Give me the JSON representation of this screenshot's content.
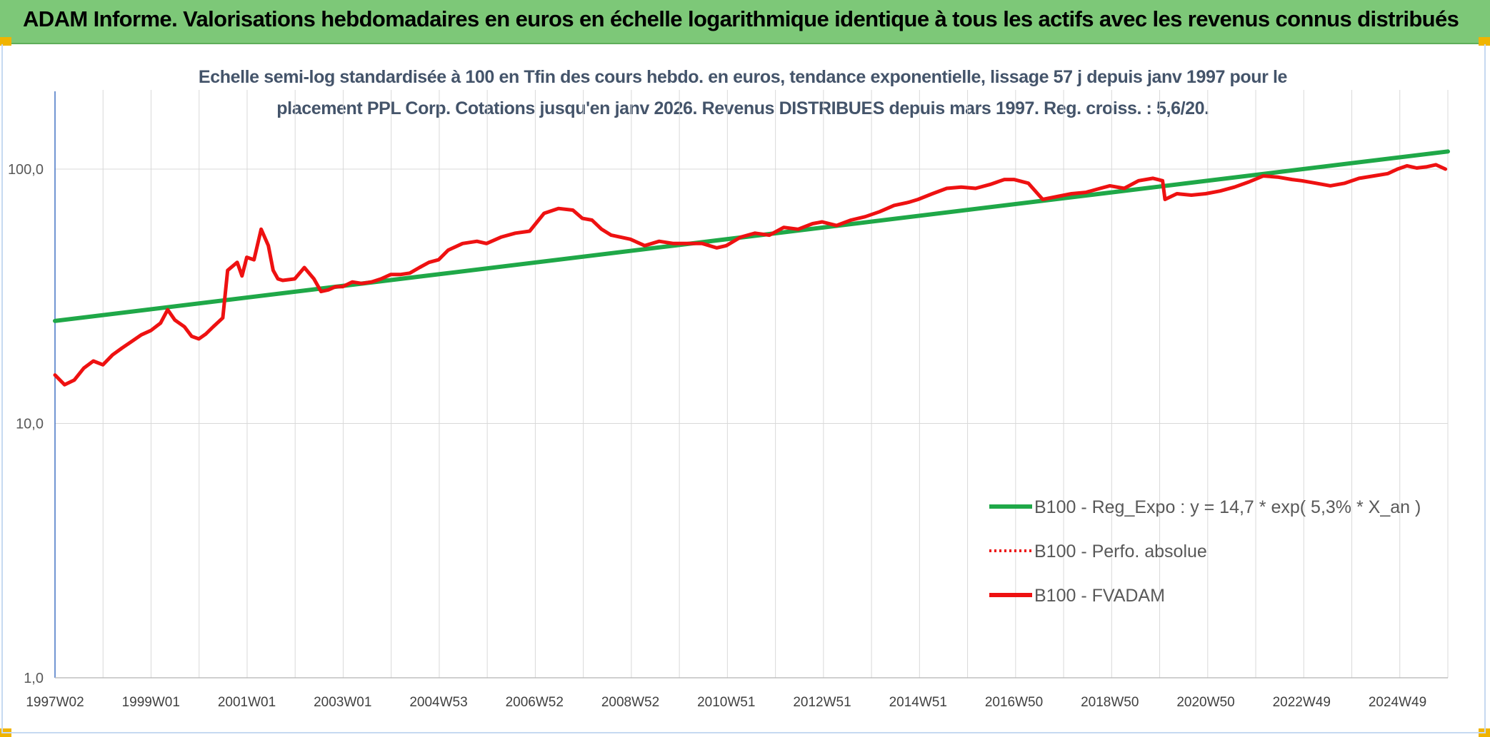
{
  "header": {
    "title": "ADAM Informe. Valorisations hebdomadaires en euros en échelle logarithmique identique à tous les actifs avec les revenus connus distribués"
  },
  "colors": {
    "banner": "#7dc878",
    "accent_corner": "#f0b400",
    "trend_line": "#1fa848",
    "price_line": "#ee1111",
    "subtitle": "#44546a"
  },
  "chart_data": {
    "type": "line",
    "title_line1": "Echelle semi-log standardisée à 100 en Tfin des cours hebdo. en euros, tendance exponentielle, lissage 57 j depuis janv 1997 pour le",
    "title_line2": "placement PPL Corp. Cotations jusqu'en janv 2026. Revenus DISTRIBUES depuis mars 1997. Reg. croiss. : 5,6/20.",
    "y_scale": "log",
    "ylim": [
      1,
      200
    ],
    "xlim": [
      1997.0,
      2026.05
    ],
    "y_ticks": [
      {
        "value": 1,
        "label": "1,0"
      },
      {
        "value": 10,
        "label": "10,0"
      },
      {
        "value": 100,
        "label": "100,0"
      }
    ],
    "x_ticks": [
      {
        "value": 1997.0,
        "label": "1997W02"
      },
      {
        "value": 1999.0,
        "label": "1999W01"
      },
      {
        "value": 2001.0,
        "label": "2001W01"
      },
      {
        "value": 2003.0,
        "label": "2003W01"
      },
      {
        "value": 2005.0,
        "label": "2004W53"
      },
      {
        "value": 2007.0,
        "label": "2006W52"
      },
      {
        "value": 2009.0,
        "label": "2008W52"
      },
      {
        "value": 2011.0,
        "label": "2010W51"
      },
      {
        "value": 2013.0,
        "label": "2012W51"
      },
      {
        "value": 2015.0,
        "label": "2014W51"
      },
      {
        "value": 2017.0,
        "label": "2016W50"
      },
      {
        "value": 2019.0,
        "label": "2018W50"
      },
      {
        "value": 2021.0,
        "label": "2020W50"
      },
      {
        "value": 2023.0,
        "label": "2022W49"
      },
      {
        "value": 2025.0,
        "label": "2024W49"
      }
    ],
    "grid": true,
    "legend_position": "bottom-right",
    "series": [
      {
        "name": "B100 - Reg_Expo : y = 14,7 * exp( 5,3% *  X_an )",
        "style": "solid",
        "color": "#1fa848",
        "x": [
          1997.0,
          2026.05
        ],
        "y": [
          25.3,
          117.3
        ]
      },
      {
        "name": "B100 - Perfo. absolue",
        "style": "dotted",
        "color": "#ee1111",
        "x": [],
        "y": []
      },
      {
        "name": "B100 - FVADAM",
        "style": "solid",
        "color": "#ee1111",
        "x": [
          1997.0,
          1997.2,
          1997.4,
          1997.6,
          1997.8,
          1998.0,
          1998.2,
          1998.4,
          1998.6,
          1998.8,
          1999.0,
          1999.2,
          1999.35,
          1999.5,
          1999.7,
          1999.85,
          2000.0,
          2000.15,
          2000.3,
          2000.5,
          2000.6,
          2000.8,
          2000.9,
          2001.0,
          2001.15,
          2001.3,
          2001.45,
          2001.55,
          2001.65,
          2001.75,
          2002.0,
          2002.2,
          2002.4,
          2002.55,
          2002.7,
          2002.85,
          2003.0,
          2003.2,
          2003.4,
          2003.6,
          2003.8,
          2004.0,
          2004.2,
          2004.4,
          2004.6,
          2004.8,
          2005.0,
          2005.2,
          2005.5,
          2005.8,
          2006.0,
          2006.3,
          2006.6,
          2006.9,
          2007.2,
          2007.5,
          2007.8,
          2008.0,
          2008.2,
          2008.4,
          2008.6,
          2008.8,
          2009.0,
          2009.3,
          2009.6,
          2009.9,
          2010.2,
          2010.5,
          2010.8,
          2011.0,
          2011.3,
          2011.6,
          2011.9,
          2012.2,
          2012.5,
          2012.8,
          2013.0,
          2013.3,
          2013.6,
          2013.9,
          2014.2,
          2014.5,
          2014.8,
          2015.0,
          2015.3,
          2015.6,
          2015.9,
          2016.2,
          2016.5,
          2016.8,
          2017.0,
          2017.3,
          2017.6,
          2017.9,
          2018.2,
          2018.5,
          2018.8,
          2019.0,
          2019.3,
          2019.6,
          2019.9,
          2020.1,
          2020.15,
          2020.4,
          2020.7,
          2021.0,
          2021.3,
          2021.6,
          2021.9,
          2022.2,
          2022.5,
          2022.8,
          2023.0,
          2023.3,
          2023.6,
          2023.9,
          2024.2,
          2024.5,
          2024.8,
          2025.0,
          2025.2,
          2025.4,
          2025.6,
          2025.8,
          2026.0
        ],
        "y": [
          15.5,
          14.2,
          14.8,
          16.5,
          17.6,
          17.0,
          18.6,
          19.8,
          21.0,
          22.3,
          23.2,
          24.8,
          28.0,
          25.5,
          24.0,
          22.0,
          21.5,
          22.5,
          24.0,
          26.0,
          40.0,
          43.0,
          38.0,
          45.0,
          44.0,
          58.0,
          50.0,
          40.0,
          37.0,
          36.5,
          37.0,
          41.0,
          37.0,
          33.0,
          33.5,
          34.5,
          34.5,
          36.0,
          35.5,
          36.0,
          37.0,
          38.5,
          38.5,
          39.0,
          41.0,
          43.0,
          44.0,
          48.0,
          51.0,
          52.0,
          51.0,
          54.0,
          56.0,
          57.0,
          67.0,
          70.0,
          69.0,
          64.0,
          63.0,
          58.0,
          55.0,
          54.0,
          53.0,
          50.0,
          52.0,
          51.0,
          51.0,
          51.0,
          49.0,
          50.0,
          54.0,
          56.0,
          55.0,
          59.0,
          58.0,
          61.0,
          62.0,
          60.0,
          63.0,
          65.0,
          68.0,
          72.0,
          74.0,
          76.0,
          80.0,
          84.0,
          85.0,
          84.0,
          87.0,
          91.0,
          91.0,
          88.0,
          76.0,
          78.0,
          80.0,
          81.0,
          84.0,
          86.0,
          84.0,
          90.0,
          92.0,
          90.0,
          76.0,
          80.0,
          79.0,
          80.0,
          82.0,
          85.0,
          89.0,
          94.0,
          93.0,
          91.0,
          90.0,
          88.0,
          86.0,
          88.0,
          92.0,
          94.0,
          96.0,
          100.0,
          103.0,
          101.0,
          102.0,
          104.0,
          100.0
        ]
      }
    ]
  }
}
